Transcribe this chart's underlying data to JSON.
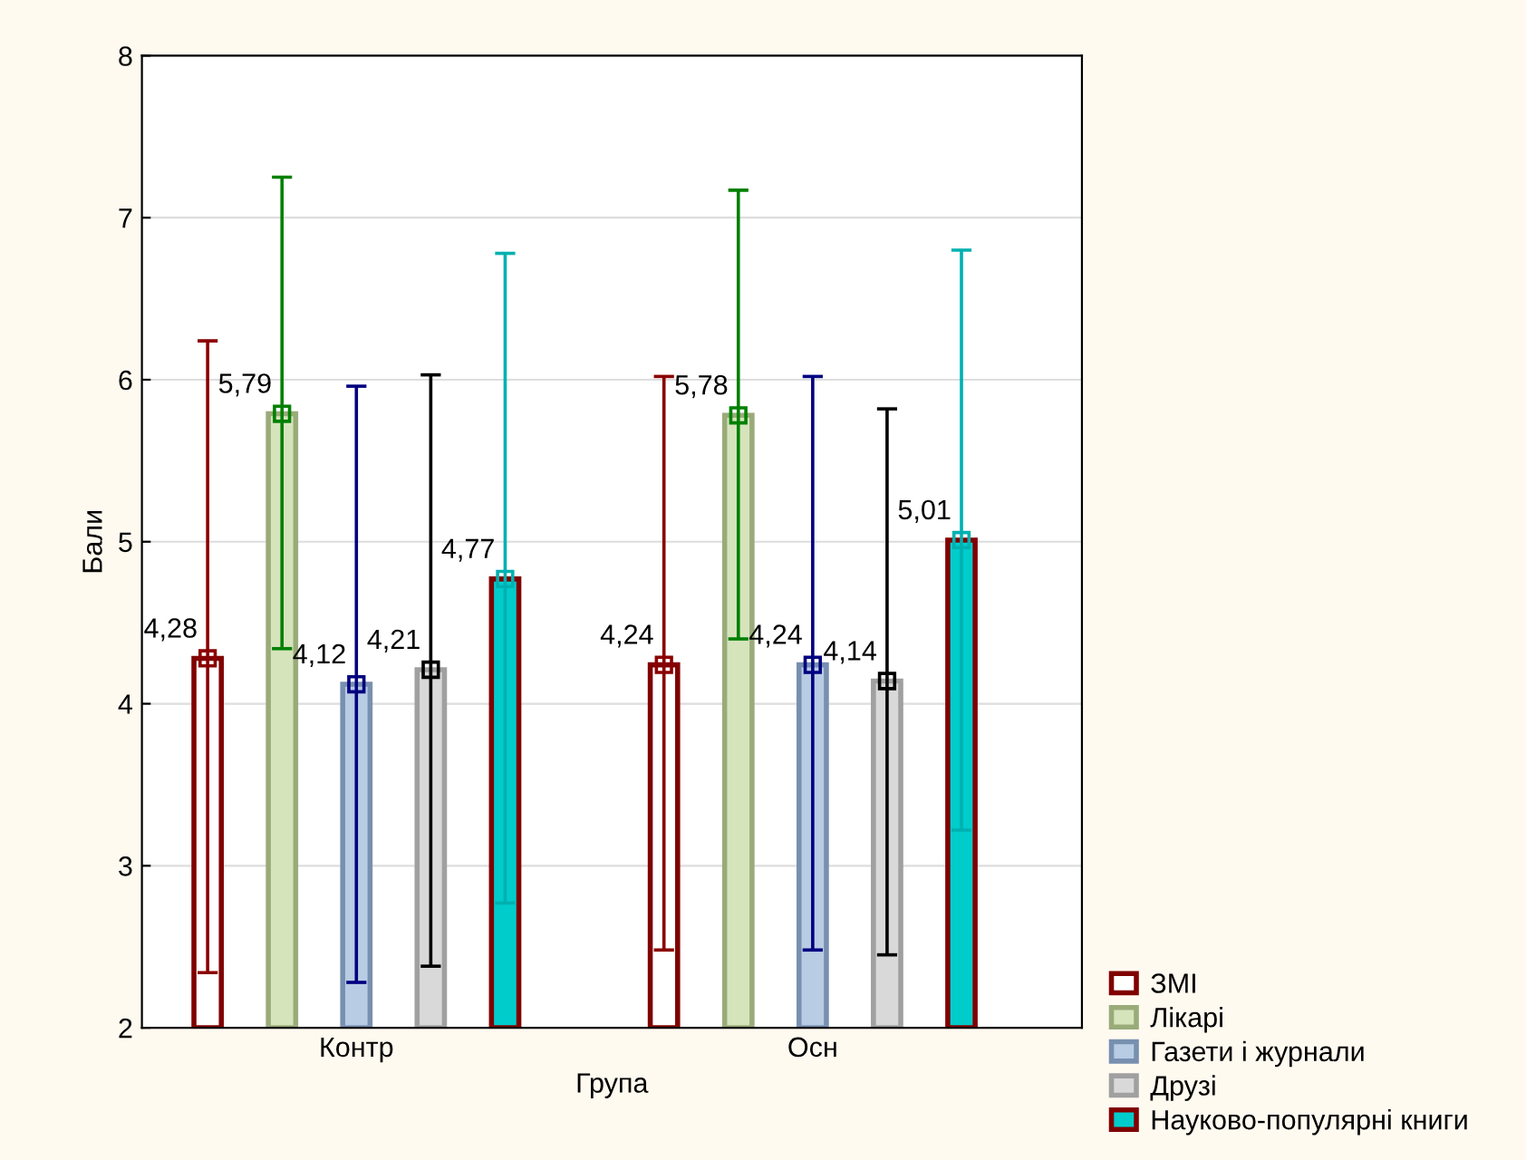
{
  "chart_data": {
    "type": "bar",
    "xlabel": "Група",
    "ylabel": "Бали",
    "categories": [
      "Контр",
      "Осн"
    ],
    "ylim": [
      2,
      8
    ],
    "yticks": [
      2,
      3,
      4,
      5,
      6,
      7,
      8
    ],
    "grid": "y",
    "legend": "bottom right",
    "marker": "square",
    "series": [
      {
        "name": "ЗМІ",
        "color": "#ffffff",
        "values": [
          4.28,
          4.24
        ],
        "value_labels": [
          "4,28",
          "4,24"
        ],
        "errors": [
          [
            2.34,
            6.24
          ],
          [
            2.48,
            6.02
          ]
        ]
      },
      {
        "name": "Лікарі",
        "color": "#d6e4bc",
        "values": [
          5.79,
          5.78
        ],
        "value_labels": [
          "5,79",
          "5,78"
        ],
        "errors": [
          [
            4.34,
            7.25
          ],
          [
            4.4,
            7.17
          ]
        ]
      },
      {
        "name": "Газети і журнали",
        "color": "#b8cce4",
        "values": [
          4.12,
          4.24
        ],
        "value_labels": [
          "4,12",
          "4,24"
        ],
        "errors": [
          [
            2.28,
            5.96
          ],
          [
            2.48,
            6.02
          ]
        ]
      },
      {
        "name": "Друзі",
        "color": "#d9d9d9",
        "values": [
          4.21,
          4.14
        ],
        "value_labels": [
          "4,21",
          "4,14"
        ],
        "errors": [
          [
            2.38,
            6.03
          ],
          [
            2.45,
            5.82
          ]
        ]
      },
      {
        "name": "Науково-популярні книги",
        "color": "#00cccc",
        "values": [
          4.77,
          5.01
        ],
        "value_labels": [
          "4,77",
          "5,01"
        ],
        "errors": [
          [
            2.77,
            6.78
          ],
          [
            3.22,
            6.8
          ]
        ]
      }
    ]
  }
}
